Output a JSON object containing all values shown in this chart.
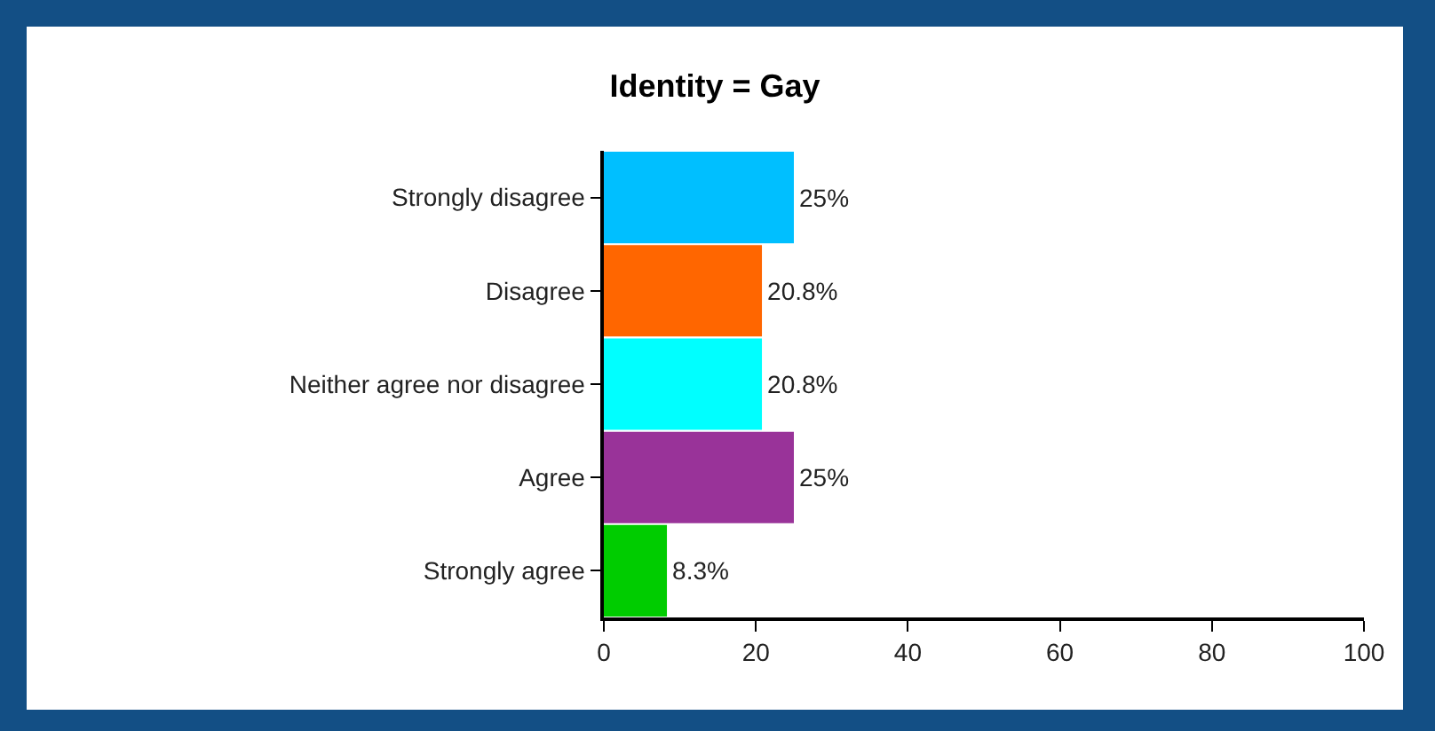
{
  "chart_data": {
    "type": "bar",
    "orientation": "horizontal",
    "title": "Identity = Gay",
    "categories": [
      "Strongly disagree",
      "Disagree",
      "Neither agree nor disagree",
      "Agree",
      "Strongly agree"
    ],
    "values": [
      25,
      20.8,
      20.8,
      25,
      8.3
    ],
    "colors": [
      "#00bfff",
      "#ff6600",
      "#00ffff",
      "#993399",
      "#00cc00"
    ],
    "value_labels": [
      "25%",
      "20.8%",
      "20.8%",
      "25%",
      "8.3%"
    ],
    "xlim": [
      0,
      100
    ],
    "xticks": [
      0,
      20,
      40,
      60,
      80,
      100
    ],
    "grid": false,
    "legend": false
  }
}
